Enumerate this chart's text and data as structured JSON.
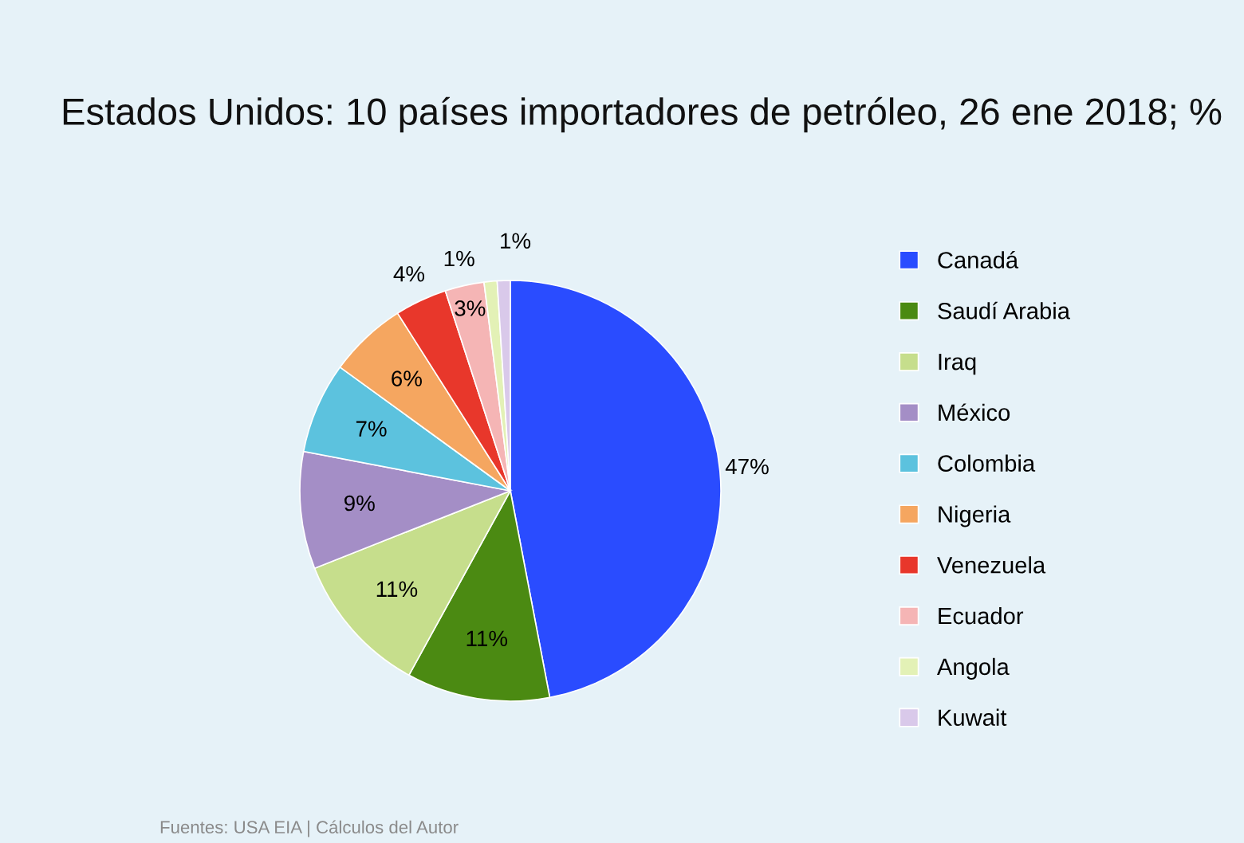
{
  "chart_data": {
    "type": "pie",
    "title": "Estados Unidos: 10 países importadores de petróleo, 26 ene 2018; %",
    "categories": [
      "Canadá",
      "Saudí Arabia",
      "Iraq",
      "México",
      "Colombia",
      "Nigeria",
      "Venezuela",
      "Ecuador",
      "Angola",
      "Kuwait"
    ],
    "values": [
      47,
      11,
      11,
      9,
      7,
      6,
      4,
      3,
      1,
      1
    ],
    "colors": [
      "#2a4cff",
      "#4b8a12",
      "#c6de8c",
      "#a48ec6",
      "#5cc2de",
      "#f5a660",
      "#e8372b",
      "#f5b5b5",
      "#e3f1b6",
      "#d9c9ea"
    ],
    "value_labels": [
      "47%",
      "11%",
      "11%",
      "9%",
      "7%",
      "6%",
      "4%",
      "3%",
      "1%",
      "1%"
    ],
    "legend": "right",
    "annotations": [
      "Fuentes: USA EIA | Cálculos del Autor"
    ]
  }
}
